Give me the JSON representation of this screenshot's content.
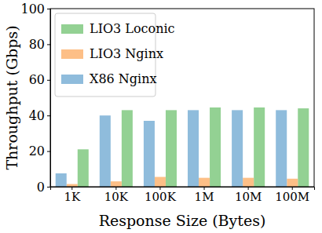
{
  "chart_data": {
    "type": "bar",
    "x_label": "Response Size (Bytes)",
    "y_label": "Throughput (Gbps)",
    "categories": [
      "1K",
      "10K",
      "100K",
      "1M",
      "10M",
      "100M"
    ],
    "series": [
      {
        "name": "LIO3 Loconic",
        "color": "#93d193",
        "values": [
          21,
          43,
          43,
          44.5,
          44.5,
          44
        ]
      },
      {
        "name": "LIO3 Nginx",
        "color": "#fdbf87",
        "values": [
          1.5,
          3,
          5.5,
          5,
          5,
          4.5
        ]
      },
      {
        "name": "X86 Nginx",
        "color": "#8fbcdc",
        "values": [
          7.5,
          40,
          37,
          43,
          43,
          43
        ]
      }
    ],
    "ylim": [
      0,
      100
    ],
    "yticks": [
      0,
      20,
      40,
      60,
      80,
      100
    ],
    "grid": false,
    "legend": "upper left"
  }
}
